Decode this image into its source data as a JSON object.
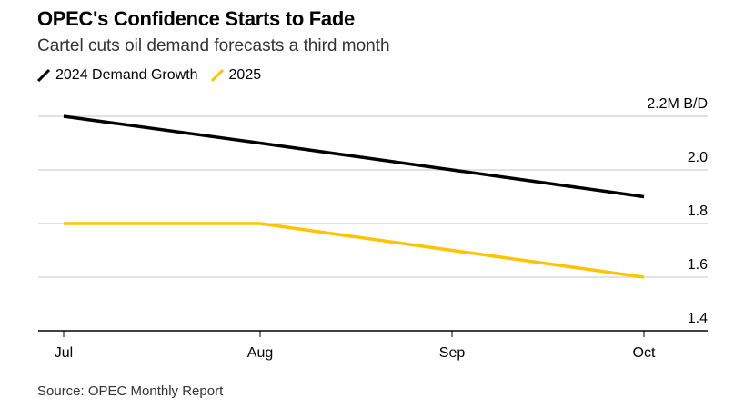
{
  "title": "OPEC's Confidence Starts to Fade",
  "subtitle": "Cartel cuts oil demand forecasts a third month",
  "source": "Source: OPEC Monthly Report",
  "chart_data": {
    "type": "line",
    "categories": [
      "Jul",
      "Aug",
      "Sep",
      "Oct"
    ],
    "series": [
      {
        "name": "2024 Demand Growth",
        "color": "#000000",
        "values": [
          2.2,
          2.1,
          2.0,
          1.9
        ]
      },
      {
        "name": "2025",
        "color": "#ffc400",
        "values": [
          1.8,
          1.8,
          1.7,
          1.6
        ]
      }
    ],
    "ylim": [
      1.4,
      2.2
    ],
    "yticks": [
      1.4,
      1.6,
      1.8,
      2.0,
      2.2
    ],
    "ytick_labels": [
      "1.4",
      "1.6",
      "1.8",
      "2.0",
      "2.2M B/D"
    ],
    "ylabel_unit": "M B/D",
    "grid": true,
    "legend": "top-left"
  }
}
